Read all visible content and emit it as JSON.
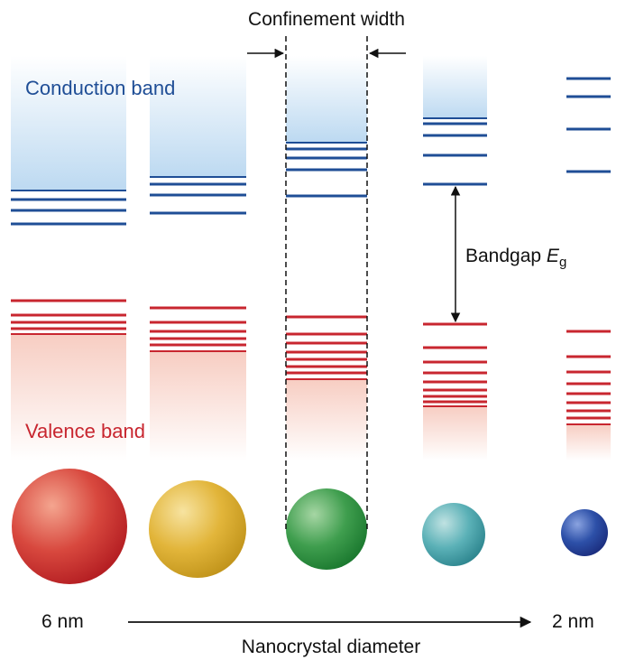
{
  "title": "Confinement width",
  "conduction_label": "Conduction band",
  "valence_label": "Valence band",
  "bandgap": {
    "prefix": "Bandgap ",
    "symbol": "E",
    "subscript": "g"
  },
  "axis": {
    "left_label": "6 nm",
    "right_label": "2 nm",
    "caption": "Nanocrystal diameter"
  },
  "colors": {
    "conduction": "#1f4e96",
    "valence": "#c8262f",
    "conduction_fill": "#bcd9f1",
    "valence_fill": "#f7cdc2",
    "sphere_6nm": "#d8483e",
    "sphere_5nm": "#e2b53a",
    "sphere_4nm": "#3f9e4e",
    "sphere_3nm": "#5bb1b7",
    "sphere_2nm": "#2d50a8"
  },
  "dots": [
    {
      "color_key": "sphere_6nm",
      "conduction_levels": 4,
      "valence_levels": 5,
      "has_band_fill": true
    },
    {
      "color_key": "sphere_5nm",
      "conduction_levels": 4,
      "valence_levels": 6,
      "has_band_fill": true
    },
    {
      "color_key": "sphere_4nm",
      "conduction_levels": 4,
      "valence_levels": 7,
      "has_band_fill": true,
      "confined": true
    },
    {
      "color_key": "sphere_3nm",
      "conduction_levels": 5,
      "valence_levels": 8,
      "has_band_fill": true
    },
    {
      "color_key": "sphere_2nm",
      "conduction_levels": 4,
      "valence_levels": 8,
      "has_band_fill": true
    }
  ]
}
